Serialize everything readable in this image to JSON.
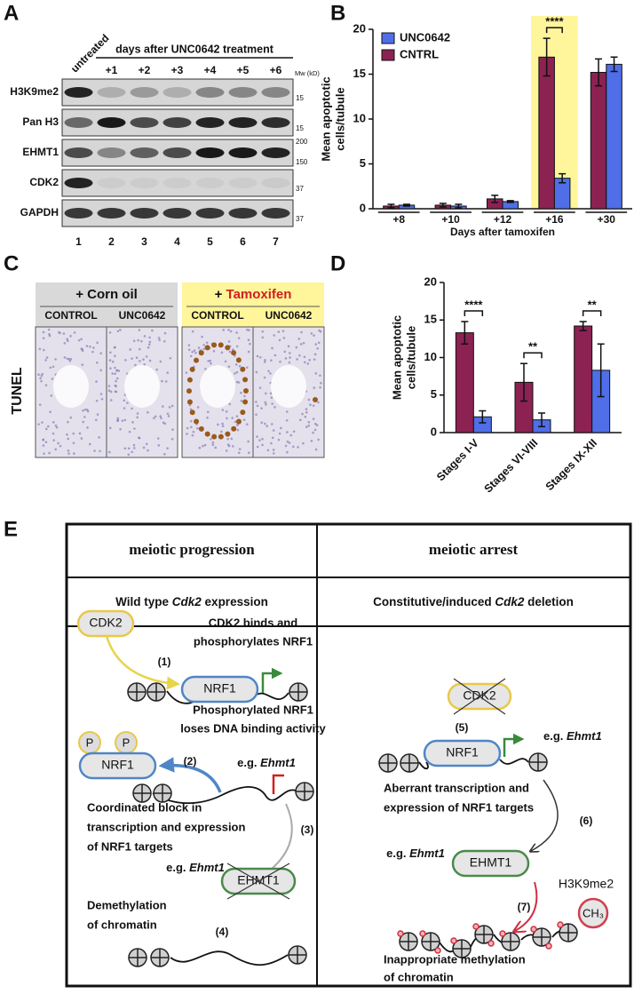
{
  "blot": {
    "letter": "A",
    "untreated": "untreated",
    "header": "days after UNC0642 treatment",
    "days": [
      "+1",
      "+2",
      "+3",
      "+4",
      "+5",
      "+6"
    ],
    "mw_unit": "Mw (kD)",
    "rows": [
      {
        "label": "H3K9me2",
        "mw": [
          "15"
        ]
      },
      {
        "label": "Pan H3",
        "mw": [
          "15"
        ]
      },
      {
        "label": "EHMT1",
        "mw": [
          "200",
          "150"
        ]
      },
      {
        "label": "CDK2",
        "mw": [
          "37"
        ]
      },
      {
        "label": "GAPDH",
        "mw": [
          "37"
        ]
      }
    ],
    "lanes": [
      "1",
      "2",
      "3",
      "4",
      "5",
      "6",
      "7"
    ]
  },
  "chart_data": [
    {
      "type": "bar",
      "panel_label": "B",
      "categories": [
        "+8",
        "+10",
        "+12",
        "+16",
        "+30"
      ],
      "series": [
        {
          "name": "CNTRL",
          "color": "#8b2252",
          "values": [
            0.3,
            0.4,
            1.1,
            16.9,
            15.2
          ],
          "errors": [
            0.2,
            0.2,
            0.4,
            2.1,
            1.5
          ]
        },
        {
          "name": "UNC0642",
          "color": "#4f6ee8",
          "values": [
            0.4,
            0.3,
            0.8,
            3.4,
            16.1
          ],
          "errors": [
            0.1,
            0.2,
            0.1,
            0.5,
            0.8
          ]
        }
      ],
      "ylim": [
        0,
        20
      ],
      "yticks": [
        0,
        5,
        10,
        15,
        20
      ],
      "y_label": [
        "Mean apoptotic",
        "cells/tubule"
      ],
      "x_label": "Days after tamoxifen",
      "significance": [
        null,
        null,
        null,
        "****",
        null
      ],
      "highlight": [
        false,
        false,
        false,
        true,
        false
      ],
      "highlight_color": "#fff59a",
      "legend": "upper left"
    },
    {
      "type": "bar",
      "panel_label": "D",
      "categories": [
        "Stages I-V",
        "Stages VI-VIII",
        "Stages IX-XII"
      ],
      "series": [
        {
          "color": "#8b2252",
          "values": [
            13.3,
            6.7,
            14.2
          ],
          "errors": [
            1.5,
            2.5,
            0.6
          ]
        },
        {
          "color": "#4f6ee8",
          "values": [
            2.1,
            1.7,
            8.3
          ],
          "errors": [
            0.8,
            0.9,
            3.5
          ]
        }
      ],
      "ylim": [
        0,
        20
      ],
      "yticks": [
        0,
        5,
        10,
        15,
        20
      ],
      "y_label": [
        "Mean apoptotic",
        "cells/tubule"
      ],
      "significance": [
        "****",
        "**",
        "**"
      ],
      "x_tick_rotation": -45
    }
  ],
  "histology": {
    "letter": "C",
    "stain": "TUNEL",
    "corn_oil": "+ Corn oil",
    "tamoxifen": [
      "+ ",
      "Tamoxifen"
    ],
    "groups": [
      "CONTROL",
      "UNC0642"
    ]
  },
  "diagram": {
    "letter": "E",
    "headings": [
      "meiotic progression",
      "meiotic arrest"
    ],
    "subheadings": [
      [
        "Wild type ",
        "Cdk2",
        " expression"
      ],
      [
        "Constitutive/induced ",
        "Cdk2",
        " deletion"
      ]
    ],
    "left": {
      "cdk2": "CDK2",
      "step1": "(1)",
      "step1_text": [
        "CDK2 binds and",
        "phosphorylates NRF1"
      ],
      "nrf1": "NRF1",
      "step2_text": [
        "Phosphorylated NRF1",
        "loses DNA binding activity"
      ],
      "phospho": [
        "P",
        "P"
      ],
      "nrf1_phospho": "NRF1",
      "step2": "(2)",
      "target": [
        "e.g. ",
        "Ehmt1"
      ],
      "step3": "(3)",
      "step3_text": [
        "Coordinated block in",
        "transcription and expression",
        "of NRF1 targets"
      ],
      "target2": [
        "e.g. ",
        "Ehmt1"
      ],
      "ehmt1": "EHMT1",
      "step4_text": [
        "Demethylation",
        "of chromatin"
      ],
      "step4": "(4)"
    },
    "right": {
      "cdk2": "CDK2",
      "step5": "(5)",
      "nrf1": "NRF1",
      "target": [
        "e.g. ",
        "Ehmt1"
      ],
      "step6_text": [
        "Aberrant transcription and",
        "expression of NRF1 targets"
      ],
      "step6": "(6)",
      "target2": [
        "e.g. ",
        "Ehmt1"
      ],
      "ehmt1": "EHMT1",
      "mark": "H3K9me2",
      "ch3": "CH₃",
      "step7": "(7)",
      "step7_text": [
        "Inappropriate methylation",
        "of chromatin"
      ]
    }
  }
}
